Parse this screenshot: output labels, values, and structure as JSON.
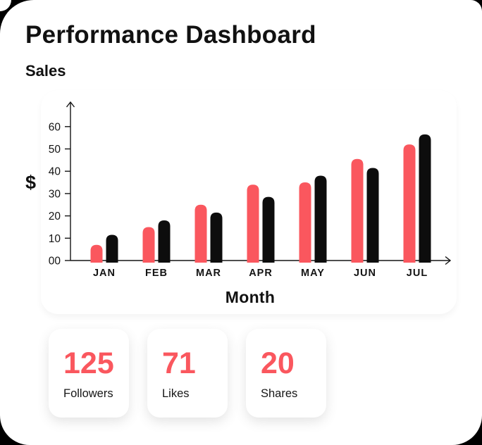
{
  "page": {
    "title": "Performance Dashboard"
  },
  "chart": {
    "title": "Sales",
    "y_axis_label": "$",
    "x_axis_label": "Month"
  },
  "chart_data": {
    "type": "bar",
    "title": "Sales",
    "xlabel": "Month",
    "ylabel": "$",
    "categories": [
      "JAN",
      "FEB",
      "MAR",
      "APR",
      "MAY",
      "JUN",
      "JUL"
    ],
    "series": [
      {
        "name": "series-pink",
        "color": "#FA575E",
        "values": [
          7,
          15,
          25,
          34,
          35,
          45.5,
          52
        ]
      },
      {
        "name": "series-black",
        "color": "#0D0D0D",
        "values": [
          11.5,
          18,
          21.5,
          28.5,
          38,
          41.5,
          56.5
        ]
      }
    ],
    "y_ticks": [
      "00",
      "10",
      "20",
      "30",
      "40",
      "50",
      "60"
    ],
    "ylim": [
      0,
      65
    ],
    "grid": false,
    "legend": "none",
    "bar_corner": "rounded-top"
  },
  "stats": [
    {
      "value": "125",
      "label": "Followers"
    },
    {
      "value": "71",
      "label": "Likes"
    },
    {
      "value": "20",
      "label": "Shares"
    }
  ],
  "colors": {
    "accent": "#FA575E",
    "bar_dark": "#0D0D0D",
    "text": "#111111",
    "panel": "#FFFFFF",
    "background": "#000000"
  }
}
